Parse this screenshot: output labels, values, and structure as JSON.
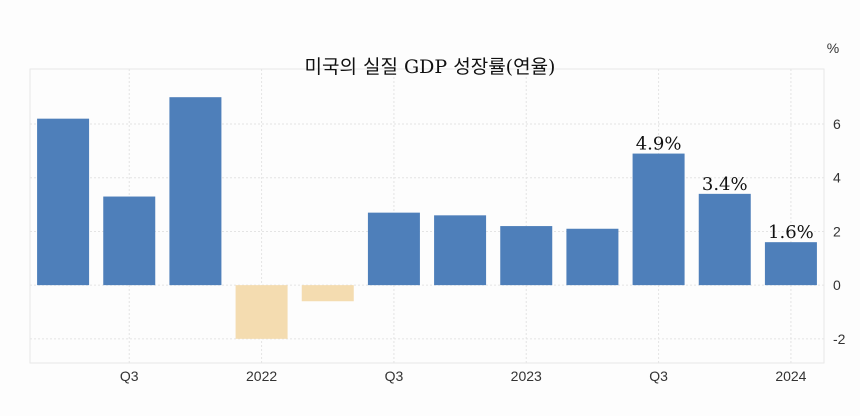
{
  "chart_data": {
    "type": "bar",
    "title": "미국의 실질 GDP 성장률(연율)",
    "unit_label": "%",
    "categories": [
      "2021 Q2",
      "2021 Q3",
      "2021 Q4",
      "2022 Q1",
      "2022 Q2",
      "2022 Q3",
      "2022 Q4",
      "2023 Q1",
      "2023 Q2",
      "2023 Q3",
      "2023 Q4",
      "2024 Q1"
    ],
    "values": [
      6.2,
      3.3,
      7.0,
      -2.0,
      -0.6,
      2.7,
      2.6,
      2.2,
      2.1,
      4.9,
      3.4,
      1.6
    ],
    "data_labels": [
      "",
      "",
      "",
      "",
      "",
      "",
      "",
      "",
      "",
      "4.9%",
      "3.4%",
      "1.6%"
    ],
    "x_tick_labels": [
      {
        "category": "2021 Q3",
        "label": "Q3"
      },
      {
        "category": "2022 Q1",
        "label": "2022"
      },
      {
        "category": "2022 Q3",
        "label": "Q3"
      },
      {
        "category": "2023 Q1",
        "label": "2023"
      },
      {
        "category": "2023 Q3",
        "label": "Q3"
      },
      {
        "category": "2024 Q1",
        "label": "2024"
      }
    ],
    "y_ticks": [
      -2,
      0,
      2,
      4,
      6
    ],
    "ylim": [
      -2.9,
      8.05
    ],
    "y_axis_position": "right",
    "grid": true,
    "colors": {
      "positive": "#4e7fba",
      "negative": "#f4dcb0",
      "grid": "#e4e4e4"
    }
  }
}
